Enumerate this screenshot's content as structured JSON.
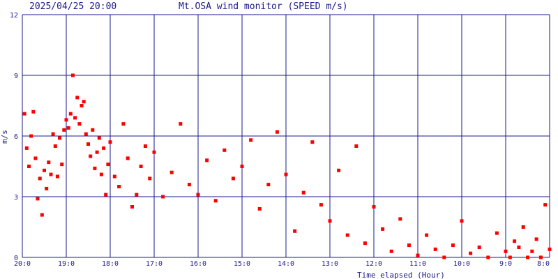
{
  "header": {
    "timestamp": "2025/04/25 20:00",
    "title": "Mt.OSA wind monitor (SPEED m/s)"
  },
  "colors": {
    "background": "#ffffff",
    "grid": "#1a1a8c",
    "text": "#1a1a8c",
    "points": "#ff0000"
  },
  "chart_data": {
    "type": "scatter",
    "title": "Mt.OSA wind monitor (SPEED m/s)",
    "xlabel": "Time elapsed (Hour)",
    "ylabel": "m/s",
    "ylim": [
      0,
      12
    ],
    "xlim_hours": [
      0,
      12
    ],
    "x_direction": "decreasing-hour-left-to-right",
    "grid": true,
    "y_ticks": [
      "0",
      "3",
      "6",
      "9",
      "12"
    ],
    "x_ticks": [
      "20:0",
      "19:0",
      "18:0",
      "17:0",
      "16:0",
      "15:0",
      "14:0",
      "13:0",
      "12:0",
      "11:0",
      "10:0",
      "9:0",
      "8:0"
    ],
    "series": [
      {
        "marker": "square",
        "x": [
          0.05,
          0.1,
          0.15,
          0.2,
          0.25,
          0.3,
          0.35,
          0.4,
          0.45,
          0.5,
          0.55,
          0.6,
          0.65,
          0.7,
          0.75,
          0.8,
          0.85,
          0.9,
          0.95,
          1.0,
          1.05,
          1.1,
          1.15,
          1.2,
          1.25,
          1.3,
          1.35,
          1.4,
          1.45,
          1.5,
          1.55,
          1.6,
          1.65,
          1.7,
          1.75,
          1.8,
          1.85,
          1.9,
          1.95,
          2.0,
          2.1,
          2.2,
          2.3,
          2.4,
          2.5,
          2.6,
          2.7,
          2.8,
          2.9,
          3.0,
          3.2,
          3.4,
          3.6,
          3.8,
          4.0,
          4.2,
          4.4,
          4.6,
          4.8,
          5.0,
          5.2,
          5.4,
          5.6,
          5.8,
          6.0,
          6.2,
          6.4,
          6.6,
          6.8,
          7.0,
          7.2,
          7.4,
          7.6,
          7.8,
          8.0,
          8.2,
          8.4,
          8.6,
          8.8,
          9.0,
          9.2,
          9.4,
          9.6,
          9.8,
          10.0,
          10.2,
          10.4,
          10.6,
          10.8,
          11.0,
          11.1,
          11.2,
          11.3,
          11.4,
          11.5,
          11.6,
          11.7,
          11.8,
          11.9,
          12.0
        ],
        "y": [
          7.1,
          5.4,
          4.5,
          6.0,
          7.2,
          4.9,
          2.9,
          3.9,
          2.1,
          4.3,
          3.4,
          4.7,
          4.1,
          6.1,
          5.5,
          4.0,
          5.9,
          4.6,
          6.3,
          6.8,
          6.4,
          7.1,
          9.0,
          6.9,
          7.9,
          6.6,
          7.5,
          7.7,
          6.1,
          5.6,
          5.0,
          6.3,
          4.4,
          5.2,
          5.9,
          4.1,
          5.4,
          3.1,
          4.6,
          5.7,
          4.0,
          3.5,
          6.6,
          4.9,
          2.5,
          3.1,
          4.5,
          5.5,
          3.9,
          5.2,
          3.0,
          4.2,
          6.6,
          3.6,
          3.1,
          4.8,
          2.8,
          5.3,
          3.9,
          4.5,
          5.8,
          2.4,
          3.6,
          6.2,
          4.1,
          1.3,
          3.2,
          5.7,
          2.6,
          1.8,
          4.3,
          1.1,
          5.5,
          0.7,
          2.5,
          1.4,
          0.3,
          1.9,
          0.6,
          0.1,
          1.1,
          0.4,
          0.0,
          0.6,
          1.8,
          0.2,
          0.5,
          0.0,
          1.2,
          0.3,
          0.0,
          0.8,
          0.5,
          1.5,
          0.0,
          0.3,
          0.9,
          0.0,
          2.6,
          0.4
        ]
      }
    ]
  }
}
